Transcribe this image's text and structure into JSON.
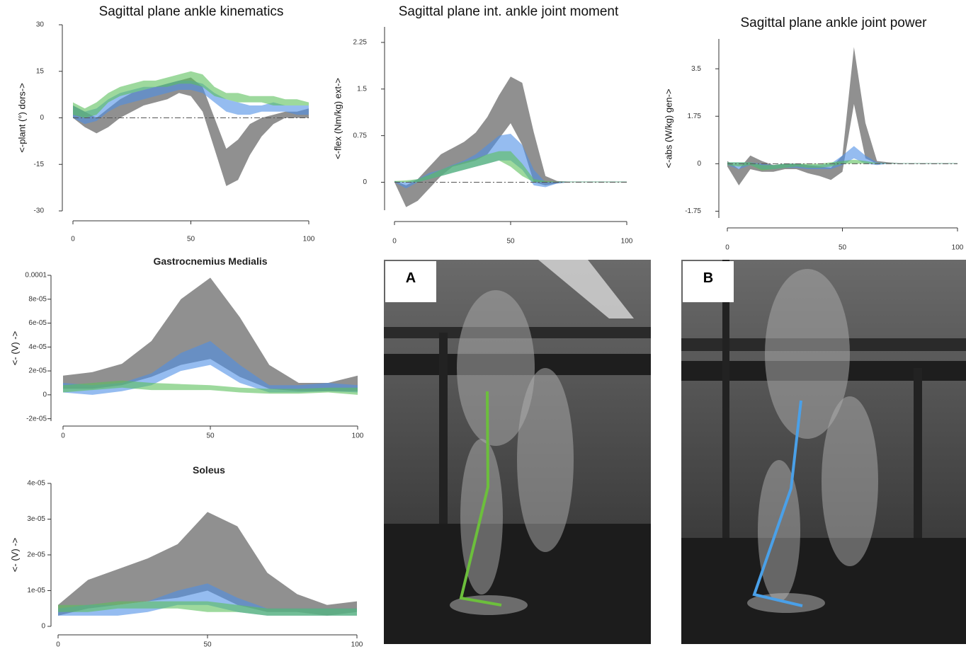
{
  "chart_data": [
    {
      "type": "band",
      "title": "Sagittal plane ankle kinematics",
      "ylabel": "<-plant   (°)   dors->",
      "x": [
        0,
        5,
        10,
        15,
        20,
        25,
        30,
        35,
        40,
        45,
        50,
        55,
        60,
        65,
        70,
        75,
        80,
        85,
        90,
        95,
        100
      ],
      "xlim": [
        0,
        100
      ],
      "xticks": [
        0,
        50,
        100
      ],
      "ylim": [
        -30,
        30
      ],
      "yticks": [
        30,
        15,
        0,
        -15,
        -30
      ],
      "reference_line": 0,
      "series": [
        {
          "color": "#8a8a8a",
          "lower": [
            0,
            -3,
            -5,
            -3,
            0,
            2,
            4,
            5,
            6,
            8,
            7,
            2,
            -10,
            -22,
            -20,
            -12,
            -6,
            -2,
            0,
            0,
            0
          ],
          "upper": [
            4,
            2,
            0,
            3,
            6,
            8,
            9,
            10,
            11,
            12,
            13,
            10,
            0,
            -10,
            -7,
            -2,
            0,
            1,
            2,
            2,
            3
          ]
        },
        {
          "color": "#4f8fe6",
          "lower": [
            0,
            -2,
            -1,
            2,
            4,
            5,
            6,
            7,
            8,
            9,
            9,
            8,
            5,
            2,
            1,
            1,
            2,
            2,
            2,
            1,
            1
          ],
          "upper": [
            4,
            2,
            3,
            6,
            8,
            9,
            10,
            10,
            11,
            12,
            12,
            11,
            8,
            6,
            5,
            4,
            4,
            5,
            4,
            4,
            4
          ]
        },
        {
          "color": "#5cbf5c",
          "lower": [
            1,
            0,
            1,
            5,
            7,
            8,
            9,
            10,
            10,
            11,
            11,
            10,
            7,
            6,
            5,
            5,
            5,
            4,
            4,
            4,
            4
          ],
          "upper": [
            5,
            3,
            5,
            8,
            10,
            11,
            12,
            12,
            13,
            14,
            15,
            14,
            10,
            8,
            8,
            7,
            7,
            7,
            6,
            6,
            5
          ]
        }
      ]
    },
    {
      "type": "band",
      "title": "Sagittal plane int. ankle joint moment",
      "ylabel": "<-flex   (Nm/kg)   ext->",
      "x": [
        0,
        5,
        10,
        15,
        20,
        25,
        30,
        35,
        40,
        45,
        50,
        55,
        60,
        65,
        70,
        75,
        80,
        85,
        90,
        95,
        100
      ],
      "xlim": [
        0,
        100
      ],
      "xticks": [
        0,
        50,
        100
      ],
      "ylim": [
        -0.45,
        2.5
      ],
      "yticks": [
        2.25,
        1.5,
        0.75,
        0
      ],
      "reference_line": 0,
      "series": [
        {
          "color": "#8a8a8a",
          "lower": [
            0,
            -0.4,
            -0.3,
            -0.1,
            0.1,
            0.25,
            0.3,
            0.35,
            0.45,
            0.7,
            0.95,
            0.6,
            0,
            -0.05,
            -0.02,
            0,
            0,
            0,
            0,
            0,
            0
          ],
          "upper": [
            0.02,
            -0.05,
            0.05,
            0.25,
            0.45,
            0.55,
            0.65,
            0.8,
            1.05,
            1.4,
            1.7,
            1.6,
            0.8,
            0.1,
            0.02,
            0.01,
            0.01,
            0.01,
            0.01,
            0.01,
            0.01
          ]
        },
        {
          "color": "#4f8fe6",
          "lower": [
            0,
            -0.1,
            0,
            0.05,
            0.1,
            0.15,
            0.2,
            0.25,
            0.3,
            0.35,
            0.35,
            0.2,
            -0.05,
            -0.08,
            -0.02,
            0,
            0,
            0,
            0,
            0,
            0
          ],
          "upper": [
            0.02,
            0,
            0.05,
            0.15,
            0.2,
            0.28,
            0.35,
            0.45,
            0.6,
            0.75,
            0.78,
            0.6,
            0.2,
            0,
            0.01,
            0.01,
            0.01,
            0.01,
            0.01,
            0.01,
            0.01
          ]
        },
        {
          "color": "#5cbf5c",
          "lower": [
            0,
            0,
            0,
            0.05,
            0.1,
            0.15,
            0.2,
            0.25,
            0.3,
            0.35,
            0.25,
            0.1,
            0,
            0,
            0,
            0,
            0,
            0,
            0,
            0,
            0
          ],
          "upper": [
            0.02,
            0.03,
            0.05,
            0.12,
            0.2,
            0.27,
            0.33,
            0.38,
            0.45,
            0.5,
            0.5,
            0.3,
            0.05,
            0.02,
            0.01,
            0.01,
            0.01,
            0.01,
            0.01,
            0.01,
            0.01
          ]
        }
      ]
    },
    {
      "type": "band",
      "title": "Sagittal plane ankle joint power",
      "ylabel": "<-abs   (W/kg)   gen->",
      "x": [
        0,
        5,
        10,
        15,
        20,
        25,
        30,
        35,
        40,
        45,
        50,
        55,
        60,
        65,
        70,
        75,
        80,
        85,
        90,
        95,
        100
      ],
      "xlim": [
        0,
        100
      ],
      "xticks": [
        0,
        50,
        100
      ],
      "ylim": [
        -2,
        4.6
      ],
      "yticks": [
        3.5,
        1.75,
        0,
        -1.75
      ],
      "reference_line": 0,
      "series": [
        {
          "color": "#8a8a8a",
          "lower": [
            -0.1,
            -0.8,
            -0.2,
            -0.3,
            -0.3,
            -0.2,
            -0.2,
            -0.35,
            -0.45,
            -0.6,
            -0.3,
            2.2,
            0.2,
            0,
            0,
            0,
            0,
            0,
            0,
            0,
            0
          ],
          "upper": [
            0.1,
            -0.2,
            0.3,
            0.1,
            -0.05,
            0,
            0,
            -0.05,
            -0.1,
            -0.15,
            0.3,
            4.3,
            1.5,
            0.1,
            0.05,
            0.02,
            0.02,
            0.02,
            0.02,
            0.02,
            0.02
          ]
        },
        {
          "color": "#4f8fe6",
          "lower": [
            -0.05,
            -0.2,
            -0.05,
            -0.2,
            -0.2,
            -0.15,
            -0.15,
            -0.2,
            -0.2,
            -0.2,
            -0.05,
            0.2,
            0,
            -0.05,
            0,
            0,
            0,
            0,
            0,
            0,
            0
          ],
          "upper": [
            0.05,
            0.05,
            0.05,
            0,
            -0.05,
            0,
            0,
            -0.05,
            -0.05,
            0,
            0.3,
            0.65,
            0.3,
            0.05,
            0.02,
            0.02,
            0.02,
            0.02,
            0.02,
            0.02,
            0.02
          ]
        },
        {
          "color": "#5cbf5c",
          "lower": [
            -0.05,
            -0.1,
            -0.05,
            -0.25,
            -0.2,
            -0.15,
            -0.1,
            -0.15,
            -0.15,
            -0.1,
            0,
            0,
            0,
            0,
            0,
            0,
            0,
            0,
            0,
            0,
            0
          ],
          "upper": [
            0.05,
            0.05,
            0.05,
            -0.05,
            -0.05,
            0,
            0,
            0,
            0,
            0.05,
            0.1,
            0.15,
            0.1,
            0.03,
            0.02,
            0.02,
            0.02,
            0.02,
            0.02,
            0.02,
            0.02
          ]
        }
      ]
    },
    {
      "type": "band",
      "title": "Gastrocnemius Medialis",
      "ylabel": "<- (V) ->",
      "x": [
        0,
        10,
        20,
        30,
        40,
        50,
        60,
        70,
        80,
        90,
        100
      ],
      "xlim": [
        0,
        100
      ],
      "xticks": [
        0,
        50,
        100
      ],
      "ylim": [
        -2.2e-05,
        0.0001
      ],
      "yticks": [
        0.0001,
        {
          "value": 8e-05,
          "label": "8e-05"
        },
        {
          "value": 6e-05,
          "label": "6e-05"
        },
        {
          "value": 4e-05,
          "label": "4e-05"
        },
        {
          "value": 2e-05,
          "label": "2e-05"
        },
        0,
        {
          "value": -2e-05,
          "label": "-2e-05"
        }
      ],
      "series": [
        {
          "color": "#8a8a8a",
          "lower": [
            5e-06,
            5e-06,
            8e-06,
            1.5e-05,
            2.5e-05,
            3e-05,
            1.5e-05,
            5e-06,
            3e-06,
            3e-06,
            3e-06
          ],
          "upper": [
            1.6e-05,
            1.9e-05,
            2.6e-05,
            4.5e-05,
            8e-05,
            9.8e-05,
            6.5e-05,
            2.5e-05,
            1e-05,
            1e-05,
            1.6e-05
          ]
        },
        {
          "color": "#4f8fe6",
          "lower": [
            2e-06,
            0,
            3e-06,
            8e-06,
            2e-05,
            2.5e-05,
            1e-05,
            2e-06,
            2e-06,
            3e-06,
            2e-06
          ],
          "upper": [
            1e-05,
            8e-06,
            1e-05,
            1.8e-05,
            3.5e-05,
            4.5e-05,
            2.5e-05,
            8e-06,
            8e-06,
            1e-05,
            8e-06
          ]
        },
        {
          "color": "#5cbf5c",
          "lower": [
            2e-06,
            4e-06,
            6e-06,
            4e-06,
            4e-06,
            4e-06,
            2e-06,
            1e-06,
            1e-06,
            2e-06,
            0
          ],
          "upper": [
            8e-06,
            1e-05,
            1.2e-05,
            1e-05,
            9e-06,
            8e-06,
            6e-06,
            5e-06,
            5e-06,
            6e-06,
            6e-06
          ]
        }
      ]
    },
    {
      "type": "band",
      "title": "Soleus",
      "ylabel": "<- (V) ->",
      "x": [
        0,
        10,
        20,
        30,
        40,
        50,
        60,
        70,
        80,
        90,
        100
      ],
      "xlim": [
        0,
        100
      ],
      "xticks": [
        0,
        50,
        100
      ],
      "ylim": [
        0,
        4e-05
      ],
      "yticks": [
        {
          "value": 4e-05,
          "label": "4e-05"
        },
        {
          "value": 3e-05,
          "label": "3e-05"
        },
        {
          "value": 2e-05,
          "label": "2e-05"
        },
        {
          "value": 1e-05,
          "label": "1e-05"
        },
        0
      ],
      "series": [
        {
          "color": "#8a8a8a",
          "lower": [
            3e-06,
            5e-06,
            6e-06,
            7e-06,
            8e-06,
            1e-05,
            6e-06,
            4e-06,
            4e-06,
            3e-06,
            4e-06
          ],
          "upper": [
            6e-06,
            1.3e-05,
            1.6e-05,
            1.9e-05,
            2.3e-05,
            3.2e-05,
            2.8e-05,
            1.5e-05,
            9e-06,
            6e-06,
            7e-06
          ]
        },
        {
          "color": "#4f8fe6",
          "lower": [
            3e-06,
            3e-06,
            3e-06,
            4e-06,
            6e-06,
            6e-06,
            4e-06,
            3e-06,
            3e-06,
            3e-06,
            3e-06
          ],
          "upper": [
            5e-06,
            6e-06,
            6e-06,
            7e-06,
            1e-05,
            1.2e-05,
            8e-06,
            5e-06,
            5e-06,
            5e-06,
            5e-06
          ]
        },
        {
          "color": "#5cbf5c",
          "lower": [
            4e-06,
            4e-06,
            5e-06,
            5e-06,
            5e-06,
            4e-06,
            4e-06,
            3e-06,
            3e-06,
            3e-06,
            3e-06
          ],
          "upper": [
            6e-06,
            6e-06,
            7e-06,
            7e-06,
            7e-06,
            7e-06,
            6e-06,
            5e-06,
            5e-06,
            5e-06,
            5e-06
          ]
        }
      ]
    }
  ],
  "panels": [
    {
      "label": "A"
    },
    {
      "label": "B"
    }
  ]
}
